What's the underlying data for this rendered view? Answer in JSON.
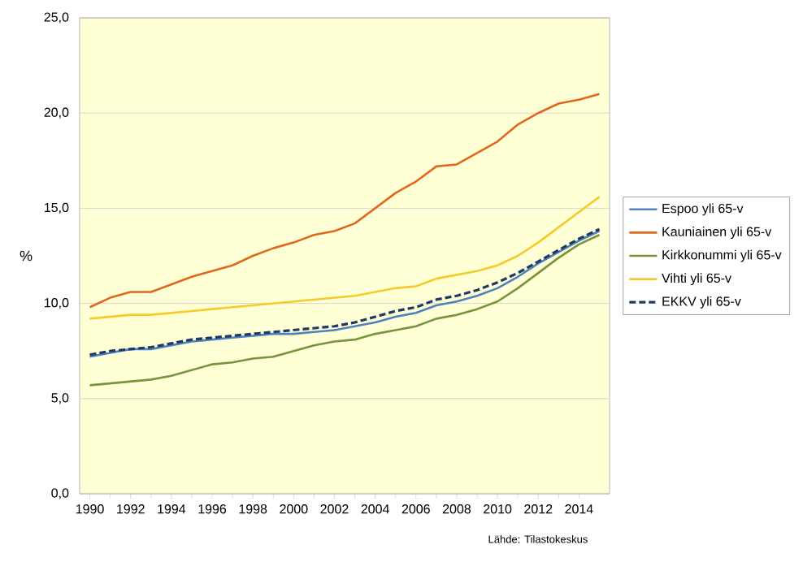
{
  "chart_data": {
    "type": "line",
    "ylabel": "%",
    "x": [
      1990,
      1991,
      1992,
      1993,
      1994,
      1995,
      1996,
      1997,
      1998,
      1999,
      2000,
      2001,
      2002,
      2003,
      2004,
      2005,
      2006,
      2007,
      2008,
      2009,
      2010,
      2011,
      2012,
      2013,
      2014,
      2015
    ],
    "series": [
      {
        "name": "Espoo yli 65-v",
        "color": "#4f81bd",
        "values": [
          7.2,
          7.4,
          7.6,
          7.6,
          7.8,
          8.0,
          8.1,
          8.2,
          8.3,
          8.4,
          8.4,
          8.5,
          8.6,
          8.8,
          9.0,
          9.3,
          9.5,
          9.9,
          10.1,
          10.4,
          10.8,
          11.4,
          12.1,
          12.7,
          13.3,
          13.8
        ]
      },
      {
        "name": "Kauniainen yli 65-v",
        "color": "#e0681e",
        "values": [
          9.8,
          10.3,
          10.6,
          10.6,
          11.0,
          11.4,
          11.7,
          12.0,
          12.5,
          12.9,
          13.2,
          13.6,
          13.8,
          14.2,
          15.0,
          15.8,
          16.4,
          17.2,
          17.3,
          17.9,
          18.5,
          19.4,
          20.0,
          20.5,
          20.7,
          21.0
        ]
      },
      {
        "name": "Kirkkonummi yli 65-v",
        "color": "#77933c",
        "values": [
          5.7,
          5.8,
          5.9,
          6.0,
          6.2,
          6.5,
          6.8,
          6.9,
          7.1,
          7.2,
          7.5,
          7.8,
          8.0,
          8.1,
          8.4,
          8.6,
          8.8,
          9.2,
          9.4,
          9.7,
          10.1,
          10.8,
          11.6,
          12.4,
          13.1,
          13.6
        ]
      },
      {
        "name": "Vihti yli 65-v",
        "color": "#f6c92c",
        "values": [
          9.2,
          9.3,
          9.4,
          9.4,
          9.5,
          9.6,
          9.7,
          9.8,
          9.9,
          10.0,
          10.1,
          10.2,
          10.3,
          10.4,
          10.6,
          10.8,
          10.9,
          11.3,
          11.5,
          11.7,
          12.0,
          12.5,
          13.2,
          14.0,
          14.8,
          15.6
        ]
      },
      {
        "name": "EKKV yli 65-v",
        "color": "#1f3864",
        "line_style": "dashed",
        "values": [
          7.3,
          7.5,
          7.6,
          7.7,
          7.9,
          8.1,
          8.2,
          8.3,
          8.4,
          8.5,
          8.6,
          8.7,
          8.8,
          9.0,
          9.3,
          9.6,
          9.8,
          10.2,
          10.4,
          10.7,
          11.1,
          11.6,
          12.2,
          12.8,
          13.4,
          13.9
        ]
      }
    ],
    "xlim": [
      1989.5,
      2015.5
    ],
    "xticks": [
      1990,
      1992,
      1994,
      1996,
      1998,
      2000,
      2002,
      2004,
      2006,
      2008,
      2010,
      2012,
      2014
    ],
    "ylim": [
      0,
      25
    ],
    "yticks": [
      {
        "value": 0,
        "label": "0,0"
      },
      {
        "value": 5,
        "label": "5,0"
      },
      {
        "value": 10,
        "label": "10,0"
      },
      {
        "value": 15,
        "label": "15,0"
      },
      {
        "value": 20,
        "label": "20,0"
      },
      {
        "value": 25,
        "label": "25,0"
      }
    ],
    "grid": "y",
    "legend": "right",
    "line_style": "solid",
    "marker": "none",
    "annotations": [
      "Lähde: Tilastokeskus"
    ]
  }
}
